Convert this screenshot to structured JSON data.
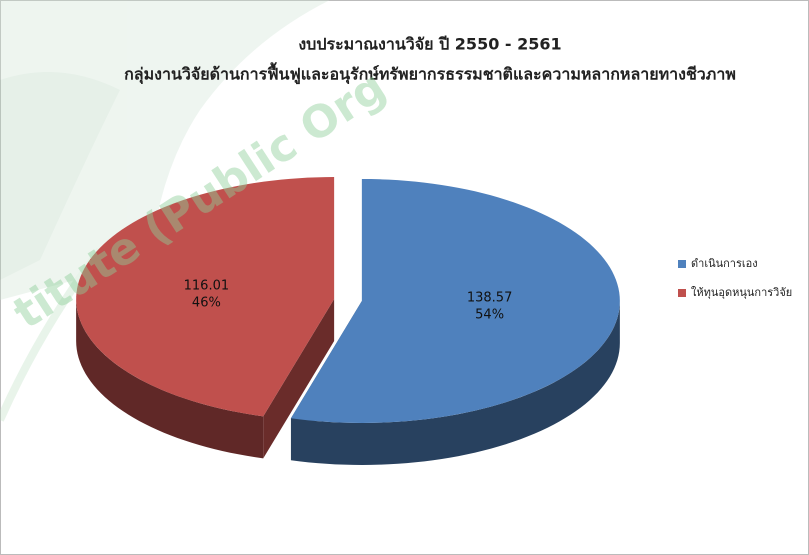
{
  "chart_data": {
    "type": "pie",
    "title": "งบประมาณงานวิจัย ปี 2550 - 2561",
    "subtitle": "กลุ่มงานวิจัยด้านการฟื้นฟูและอนุรักษ์ทรัพยากรธรรมชาติและความหลากหลายทางชีวภาพ",
    "categories": [
      "ดำเนินการเอง",
      "ให้ทุนอุดหนุนการวิจัย"
    ],
    "values": [
      138.57,
      116.01
    ],
    "percent_labels": [
      "54%",
      "46%"
    ],
    "colors": [
      "#4f81bd",
      "#c0504d"
    ],
    "legend": "right"
  },
  "watermark": "titute (Public Org"
}
